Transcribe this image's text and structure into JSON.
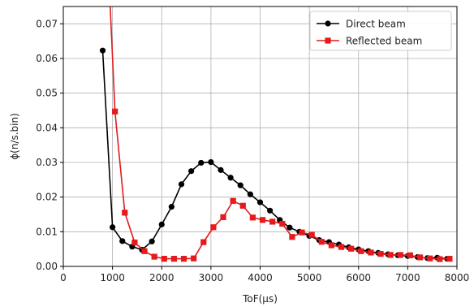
{
  "chart_data": {
    "type": "line",
    "title": "",
    "xlabel": "ToF(μs)",
    "ylabel": "ϕ(n/s.bin)",
    "xlim": [
      0,
      8000
    ],
    "ylim": [
      0,
      0.075
    ],
    "xticks": [
      "0",
      "1000",
      "2000",
      "3000",
      "4000",
      "5000",
      "6000",
      "7000",
      "8000"
    ],
    "xtick_values": [
      0,
      1000,
      2000,
      3000,
      4000,
      5000,
      6000,
      7000,
      8000
    ],
    "yticks": [
      "0.00",
      "0.01",
      "0.02",
      "0.03",
      "0.04",
      "0.05",
      "0.06",
      "0.07"
    ],
    "ytick_values": [
      0,
      0.01,
      0.02,
      0.03,
      0.04,
      0.05,
      0.06,
      0.07
    ],
    "grid": true,
    "legend_position": "top-right",
    "series": [
      {
        "name": "Direct beam",
        "color": "#000000",
        "marker": "circle",
        "x": [
          800,
          1000,
          1200,
          1400,
          1600,
          1800,
          2000,
          2200,
          2400,
          2600,
          2800,
          3000,
          3200,
          3400,
          3600,
          3800,
          4000,
          4200,
          4400,
          4600,
          4800,
          5000,
          5200,
          5400,
          5600,
          5800,
          6000,
          6200,
          6400,
          6600,
          6800,
          7000,
          7200,
          7400,
          7600,
          7800
        ],
        "y": [
          0.0623,
          0.0113,
          0.0073,
          0.0057,
          0.0048,
          0.0072,
          0.0121,
          0.0172,
          0.0237,
          0.0275,
          0.0299,
          0.0301,
          0.0278,
          0.0256,
          0.0234,
          0.0208,
          0.0185,
          0.0161,
          0.0134,
          0.0112,
          0.01,
          0.0088,
          0.0076,
          0.007,
          0.0063,
          0.0055,
          0.0049,
          0.0044,
          0.0039,
          0.0035,
          0.0032,
          0.003,
          0.0027,
          0.0024,
          0.0025,
          0.0022
        ]
      },
      {
        "name": "Reflected beam",
        "color": "#e41a1c",
        "marker": "square",
        "x": [
          950,
          1050,
          1250,
          1450,
          1650,
          1850,
          2050,
          2250,
          2450,
          2650,
          2850,
          3050,
          3250,
          3450,
          3650,
          3850,
          4050,
          4250,
          4450,
          4650,
          4850,
          5050,
          5250,
          5450,
          5650,
          5850,
          6050,
          6250,
          6450,
          6650,
          6850,
          7050,
          7250,
          7450,
          7650,
          7850
        ],
        "y": [
          0.076,
          0.0447,
          0.0155,
          0.0069,
          0.0044,
          0.0028,
          0.0022,
          0.0022,
          0.0022,
          0.0023,
          0.007,
          0.0113,
          0.0142,
          0.0189,
          0.0175,
          0.0141,
          0.0134,
          0.0129,
          0.0123,
          0.0085,
          0.0098,
          0.0091,
          0.0071,
          0.0061,
          0.0056,
          0.0051,
          0.0044,
          0.004,
          0.0036,
          0.0033,
          0.0033,
          0.0032,
          0.0026,
          0.0023,
          0.0021,
          0.0022
        ]
      }
    ]
  }
}
